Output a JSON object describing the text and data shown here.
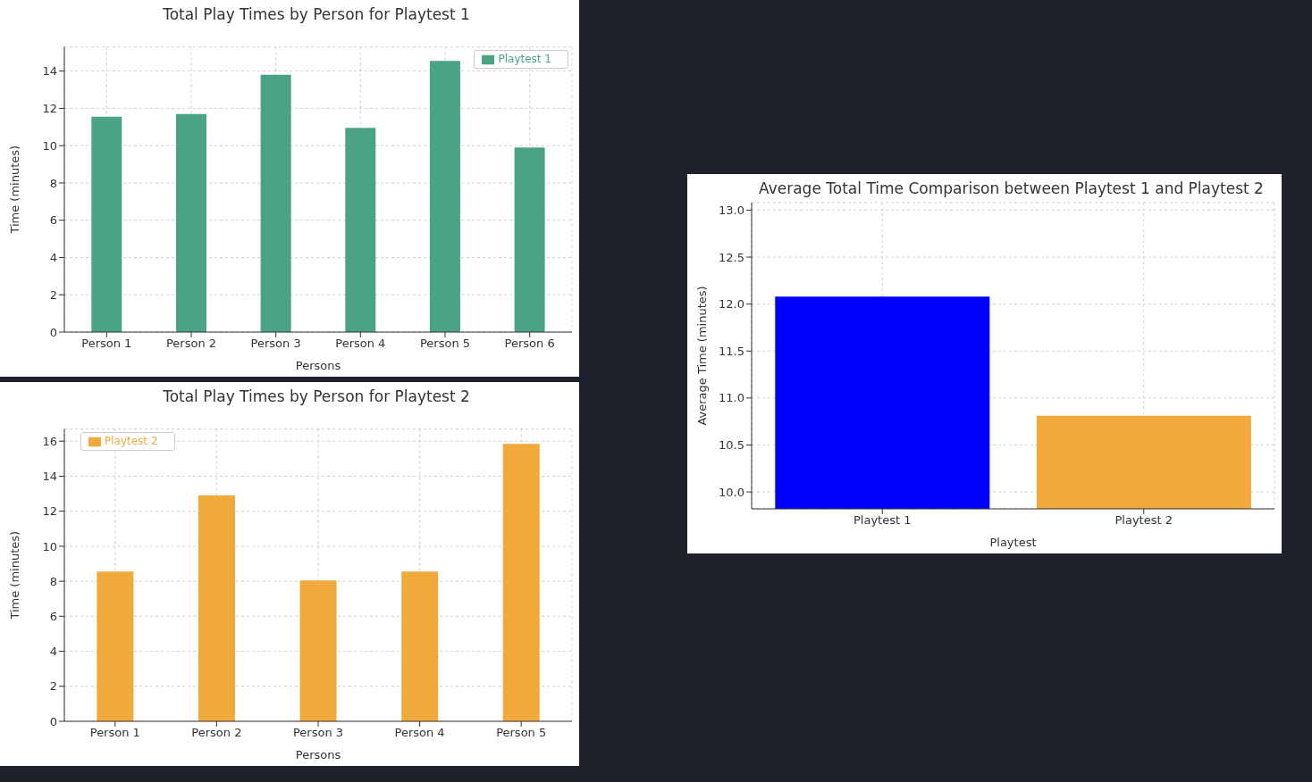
{
  "chart_data": [
    {
      "type": "bar",
      "title": "Total Play Times by Person for Playtest 1",
      "xlabel": "Persons",
      "ylabel": "Time (minutes)",
      "categories": [
        "Person 1",
        "Person 2",
        "Person 3",
        "Person 4",
        "Person 5",
        "Person 6"
      ],
      "series": [
        {
          "name": "Playtest 1",
          "color": "#4aa383",
          "values": [
            11.55,
            11.7,
            13.8,
            10.95,
            14.55,
            9.9
          ]
        }
      ],
      "ylim": [
        0,
        15.3
      ],
      "yticks": [
        0,
        2,
        4,
        6,
        8,
        10,
        12,
        14
      ],
      "grid": true,
      "legend": "top right"
    },
    {
      "type": "bar",
      "title": "Total Play Times by Person for Playtest 2",
      "xlabel": "Persons",
      "ylabel": "Time (minutes)",
      "categories": [
        "Person 1",
        "Person 2",
        "Person 3",
        "Person 4",
        "Person 5"
      ],
      "series": [
        {
          "name": "Playtest 2",
          "color": "#f0a93b",
          "values": [
            8.55,
            12.9,
            8.05,
            8.55,
            15.85
          ]
        }
      ],
      "ylim": [
        0,
        16.7
      ],
      "yticks": [
        0,
        2,
        4,
        6,
        8,
        10,
        12,
        14,
        16
      ],
      "grid": true,
      "legend": "top left"
    },
    {
      "type": "bar",
      "title": "Average Total Time Comparison between Playtest 1 and Playtest 2",
      "xlabel": "Playtest",
      "ylabel": "Average Time (minutes)",
      "categories": [
        "Playtest 1",
        "Playtest 2"
      ],
      "series": [
        {
          "color": "#0000ff",
          "colors": [
            "#0000ff",
            "#f0a93b"
          ],
          "values": [
            12.08,
            10.81
          ]
        }
      ],
      "ylim": [
        9.82,
        13.08
      ],
      "yticks": [
        {
          "value": 10,
          "label": "10.0"
        },
        {
          "value": 10.5,
          "label": "10.5"
        },
        {
          "value": 11,
          "label": "11.0"
        },
        {
          "value": 11.5,
          "label": "11.5"
        },
        {
          "value": 12,
          "label": "12.0"
        },
        {
          "value": 12.5,
          "label": "12.5"
        },
        {
          "value": 13,
          "label": "13.0"
        }
      ],
      "grid": true
    }
  ]
}
